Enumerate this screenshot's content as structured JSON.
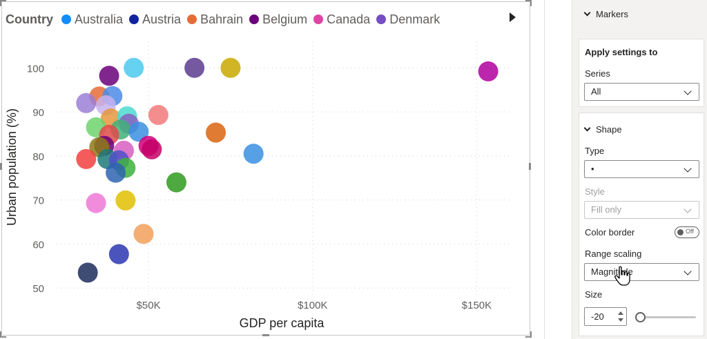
{
  "legend": {
    "title": "Country",
    "items": [
      {
        "label": "Australia",
        "color": "#118DFF"
      },
      {
        "label": "Austria",
        "color": "#12239E"
      },
      {
        "label": "Bahrain",
        "color": "#E66C37"
      },
      {
        "label": "Belgium",
        "color": "#6B007B"
      },
      {
        "label": "Canada",
        "color": "#E044A7"
      },
      {
        "label": "Denmark",
        "color": "#744EC2"
      }
    ]
  },
  "chart_data": {
    "type": "scatter",
    "xlabel": "GDP per capita",
    "ylabel": "Urban population (%)",
    "xlim": [
      22000,
      160000
    ],
    "ylim": [
      48,
      106
    ],
    "x_ticks": [
      {
        "value": 50000,
        "label": "$50K"
      },
      {
        "value": 100000,
        "label": "$100K"
      },
      {
        "value": 150000,
        "label": "$150K"
      }
    ],
    "y_ticks": [
      {
        "value": 50,
        "label": "50"
      },
      {
        "value": 60,
        "label": "60"
      },
      {
        "value": 70,
        "label": "70"
      },
      {
        "value": 80,
        "label": "80"
      },
      {
        "value": 90,
        "label": "90"
      },
      {
        "value": 100,
        "label": "100"
      }
    ],
    "points": [
      {
        "x": 38000,
        "y": 98.2,
        "color": "#6B007B"
      },
      {
        "x": 45500,
        "y": 100.0,
        "color": "#4CC9F0"
      },
      {
        "x": 64000,
        "y": 100.0,
        "color": "#5C3B8F"
      },
      {
        "x": 75000,
        "y": 100.0,
        "color": "#C9A800"
      },
      {
        "x": 153500,
        "y": 99.2,
        "color": "#B0009F"
      },
      {
        "x": 35000,
        "y": 93.5,
        "color": "#E66C37"
      },
      {
        "x": 39000,
        "y": 93.6,
        "color": "#4B8BE5"
      },
      {
        "x": 31000,
        "y": 92.0,
        "color": "#9B7FD6"
      },
      {
        "x": 37000,
        "y": 91.5,
        "color": "#C7B3F0"
      },
      {
        "x": 38500,
        "y": 88.5,
        "color": "#E6973D"
      },
      {
        "x": 43500,
        "y": 89.0,
        "color": "#4ED9D0"
      },
      {
        "x": 53000,
        "y": 89.3,
        "color": "#F27A7A"
      },
      {
        "x": 44000,
        "y": 87.3,
        "color": "#8A5FBF"
      },
      {
        "x": 34000,
        "y": 86.5,
        "color": "#6DD36D"
      },
      {
        "x": 41500,
        "y": 86.0,
        "color": "#3FB07A"
      },
      {
        "x": 47000,
        "y": 85.5,
        "color": "#3A8FE0"
      },
      {
        "x": 38000,
        "y": 84.8,
        "color": "#E04A4A"
      },
      {
        "x": 70500,
        "y": 85.3,
        "color": "#D9640F"
      },
      {
        "x": 36500,
        "y": 82.3,
        "color": "#6B007B"
      },
      {
        "x": 35000,
        "y": 82.0,
        "color": "#8C7A16"
      },
      {
        "x": 50000,
        "y": 82.3,
        "color": "#D1007A"
      },
      {
        "x": 51000,
        "y": 81.5,
        "color": "#C40066"
      },
      {
        "x": 42500,
        "y": 81.2,
        "color": "#D65FC1"
      },
      {
        "x": 82000,
        "y": 80.5,
        "color": "#3A8FE0"
      },
      {
        "x": 31000,
        "y": 79.3,
        "color": "#F23F3F"
      },
      {
        "x": 37500,
        "y": 79.3,
        "color": "#1D7A7A"
      },
      {
        "x": 41000,
        "y": 79.0,
        "color": "#5050C8"
      },
      {
        "x": 43000,
        "y": 77.3,
        "color": "#3CB03C"
      },
      {
        "x": 40000,
        "y": 76.2,
        "color": "#2E63B0"
      },
      {
        "x": 58500,
        "y": 74.0,
        "color": "#2E9A1E"
      },
      {
        "x": 43000,
        "y": 69.9,
        "color": "#E0C000"
      },
      {
        "x": 34000,
        "y": 69.3,
        "color": "#EE78D6"
      },
      {
        "x": 48500,
        "y": 62.3,
        "color": "#F2A05A"
      },
      {
        "x": 41000,
        "y": 57.7,
        "color": "#2A36B0"
      },
      {
        "x": 31500,
        "y": 53.5,
        "color": "#1C2D5A"
      }
    ]
  },
  "pane": {
    "markers_title": "Markers",
    "apply_settings": "Apply settings to",
    "series_label": "Series",
    "series_value": "All",
    "shape_title": "Shape",
    "type_label": "Type",
    "type_value": "•",
    "style_label": "Style",
    "style_value": "Fill only",
    "color_border_label": "Color border",
    "toggle_text": "Off",
    "range_scaling_label": "Range scaling",
    "range_scaling_value": "Magnitude",
    "size_label": "Size",
    "size_value": "-20"
  }
}
